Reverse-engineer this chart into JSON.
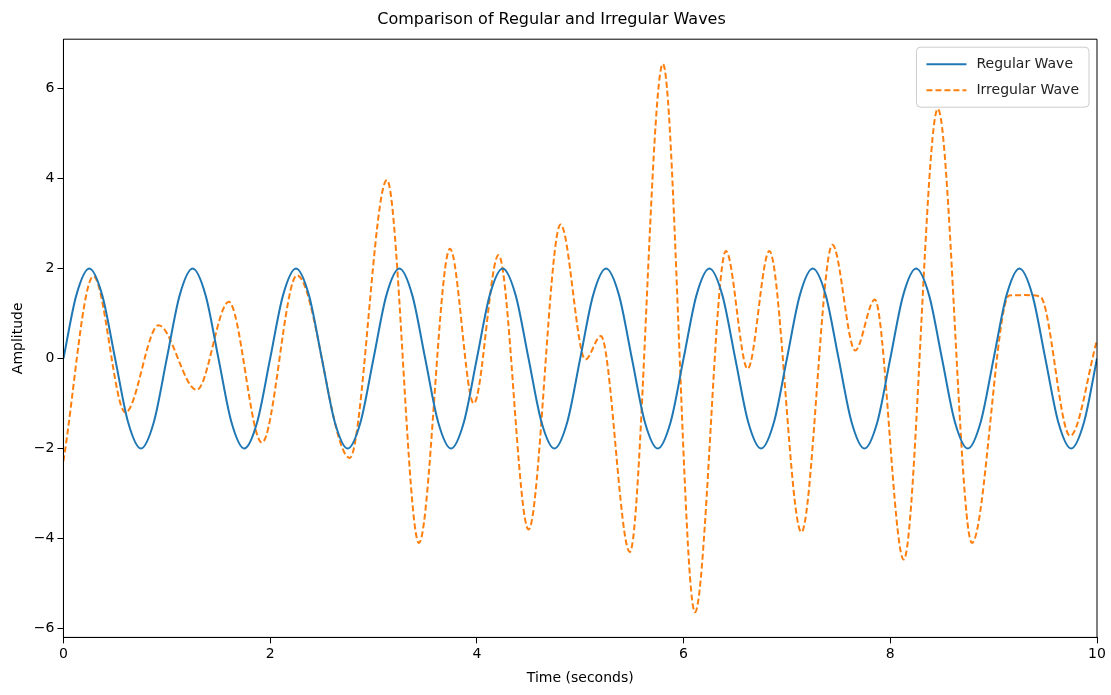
{
  "chart_data": {
    "type": "line",
    "title": "Comparison of Regular and Irregular Waves",
    "xlabel": "Time (seconds)",
    "ylabel": "Amplitude",
    "xlim": [
      0,
      10
    ],
    "xticks": [
      0,
      2,
      4,
      6,
      8,
      10
    ],
    "ylim": [
      -6.2,
      7.1
    ],
    "yticks": [
      {
        "value": -6,
        "label": "−6"
      },
      {
        "value": -4,
        "label": "−4"
      },
      {
        "value": -2,
        "label": "−2"
      },
      0,
      2,
      4,
      6
    ],
    "grid": false,
    "legend": "top right",
    "marker": "none",
    "series": [
      {
        "name": "Regular Wave",
        "color": "#1f77b4",
        "line_style": "solid",
        "x": [
          0,
          0.125,
          0.25,
          0.375,
          0.5,
          0.625,
          0.75,
          0.875,
          1,
          1.125,
          1.25,
          1.375,
          1.5,
          1.625,
          1.75,
          1.875,
          2,
          2.125,
          2.25,
          2.375,
          2.5,
          2.625,
          2.75,
          2.875,
          3,
          3.125,
          3.25,
          3.375,
          3.5,
          3.625,
          3.75,
          3.875,
          4,
          4.125,
          4.25,
          4.375,
          4.5,
          4.625,
          4.75,
          4.875,
          5,
          5.125,
          5.25,
          5.375,
          5.5,
          5.625,
          5.75,
          5.875,
          6,
          6.125,
          6.25,
          6.375,
          6.5,
          6.625,
          6.75,
          6.875,
          7,
          7.125,
          7.25,
          7.375,
          7.5,
          7.625,
          7.75,
          7.875,
          8,
          8.125,
          8.25,
          8.375,
          8.5,
          8.625,
          8.75,
          8.875,
          9,
          9.125,
          9.25,
          9.375,
          9.5,
          9.625,
          9.75,
          9.875,
          10
        ],
        "values": [
          0,
          1.41,
          2,
          1.41,
          0,
          -1.41,
          -2,
          -1.41,
          0,
          1.41,
          2,
          1.41,
          0,
          -1.41,
          -2,
          -1.41,
          0,
          1.41,
          2,
          1.41,
          0,
          -1.41,
          -2,
          -1.41,
          0,
          1.41,
          2,
          1.41,
          0,
          -1.41,
          -2,
          -1.41,
          0,
          1.41,
          2,
          1.41,
          0,
          -1.41,
          -2,
          -1.41,
          0,
          1.41,
          2,
          1.41,
          0,
          -1.41,
          -2,
          -1.41,
          0,
          1.41,
          2,
          1.41,
          0,
          -1.41,
          -2,
          -1.41,
          0,
          1.41,
          2,
          1.41,
          0,
          -1.41,
          -2,
          -1.41,
          0,
          1.41,
          2,
          1.41,
          0,
          -1.41,
          -2,
          -1.41,
          0,
          1.41,
          2,
          1.41,
          0,
          -1.41,
          -2,
          -1.41,
          0
        ]
      },
      {
        "name": "Irregular Wave",
        "color": "#ff7f0e",
        "line_style": "dashed",
        "x": [
          0,
          0.29,
          0.6,
          0.92,
          1.29,
          1.6,
          1.92,
          2.26,
          2.77,
          3.13,
          3.44,
          3.74,
          3.97,
          4.21,
          4.5,
          4.81,
          5.05,
          5.2,
          5.48,
          5.8,
          6.11,
          6.41,
          6.62,
          6.83,
          7.14,
          7.44,
          7.66,
          7.85,
          8.13,
          8.46,
          8.79,
          9.15,
          9.3,
          9.45,
          9.74,
          10
        ],
        "values": [
          -2.28,
          1.83,
          -1.2,
          0.74,
          -0.7,
          1.26,
          -1.87,
          1.85,
          -2.21,
          3.97,
          -4.1,
          2.44,
          -1,
          2.3,
          -3.8,
          2.98,
          -0.02,
          0.5,
          -4.3,
          6.55,
          -5.64,
          2.39,
          -0.23,
          2.39,
          -3.86,
          2.53,
          0.18,
          1.31,
          -4.47,
          5.55,
          -4.1,
          1.4,
          1.41,
          1.38,
          -1.72,
          0.41
        ]
      }
    ]
  }
}
